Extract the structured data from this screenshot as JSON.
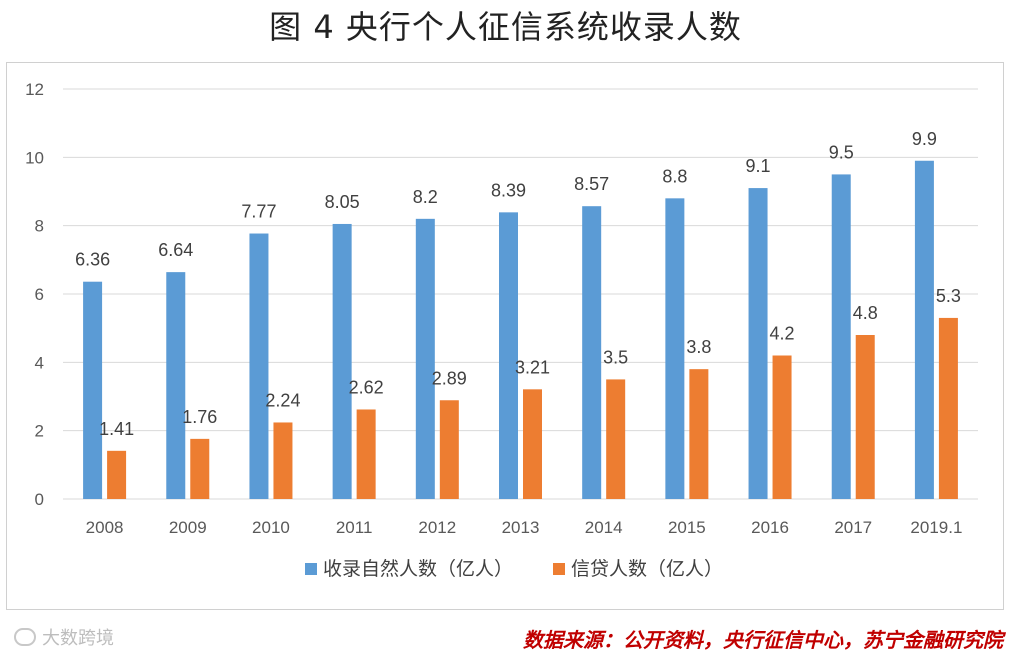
{
  "title": "图 4  央行个人征信系统收录人数",
  "source": "数据来源：公开资料，央行征信中心，苏宁金融研究院",
  "watermark": "大数跨境",
  "colors": {
    "series1": "#5b9bd5",
    "series2": "#ed7d31",
    "grid": "#d9d9d9"
  },
  "chart_data": {
    "type": "bar",
    "categories": [
      "2008",
      "2009",
      "2010",
      "2011",
      "2012",
      "2013",
      "2014",
      "2015",
      "2016",
      "2017",
      "2019.1"
    ],
    "series": [
      {
        "name": "收录自然人数（亿人）",
        "values": [
          6.36,
          6.64,
          7.77,
          8.05,
          8.2,
          8.39,
          8.57,
          8.8,
          9.1,
          9.5,
          9.9
        ]
      },
      {
        "name": "信贷人数（亿人）",
        "values": [
          1.41,
          1.76,
          2.24,
          2.62,
          2.89,
          3.21,
          3.5,
          3.8,
          4.2,
          4.8,
          5.3
        ]
      }
    ],
    "ylim": [
      0,
      12
    ],
    "yticks": [
      0,
      2,
      4,
      6,
      8,
      10,
      12
    ],
    "grid": true,
    "legend": "bottom"
  }
}
